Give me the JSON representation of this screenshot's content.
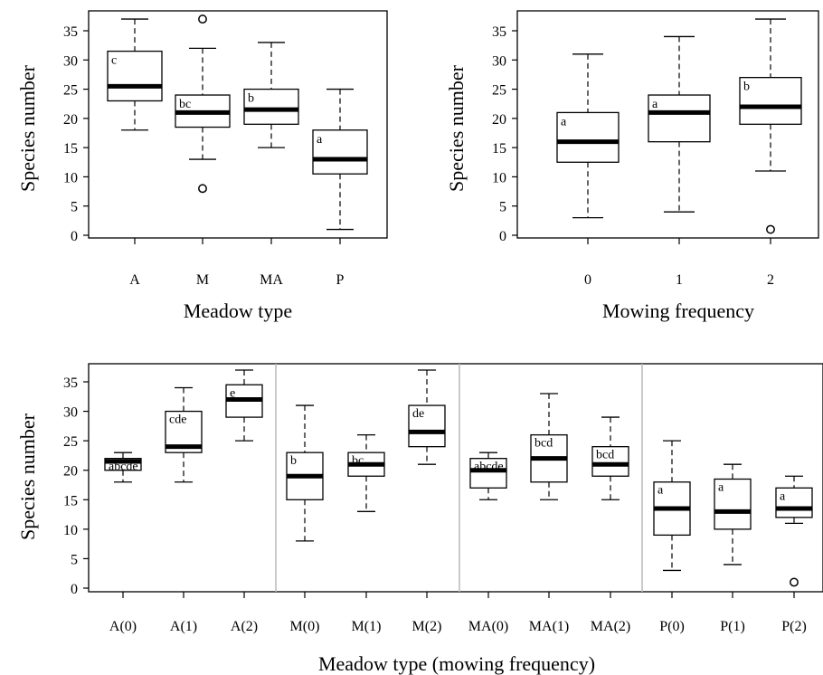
{
  "chart_data": [
    {
      "type": "boxplot",
      "id": "top-left",
      "xlabel": "Meadow type",
      "ylabel": "Species number",
      "ylim": [
        0,
        35
      ],
      "yticks": [
        0,
        5,
        10,
        15,
        20,
        25,
        30,
        35
      ],
      "boxes": [
        {
          "label": "A",
          "whisker_low": 18,
          "q1": 23,
          "median": 25.5,
          "q3": 31.5,
          "whisker_high": 37,
          "outliers": [],
          "letter": "c"
        },
        {
          "label": "M",
          "whisker_low": 13,
          "q1": 18.5,
          "median": 21,
          "q3": 24,
          "whisker_high": 32,
          "outliers": [
            37,
            8
          ],
          "letter": "bc"
        },
        {
          "label": "MA",
          "whisker_low": 15,
          "q1": 19,
          "median": 21.5,
          "q3": 25,
          "whisker_high": 33,
          "outliers": [],
          "letter": "b"
        },
        {
          "label": "P",
          "whisker_low": 1,
          "q1": 10.5,
          "median": 13,
          "q3": 18,
          "whisker_high": 25,
          "outliers": [],
          "letter": "a"
        }
      ]
    },
    {
      "type": "boxplot",
      "id": "top-right",
      "xlabel": "Mowing frequency",
      "ylabel": "Species number",
      "ylim": [
        0,
        35
      ],
      "yticks": [
        0,
        5,
        10,
        15,
        20,
        25,
        30,
        35
      ],
      "boxes": [
        {
          "label": "0",
          "whisker_low": 3,
          "q1": 12.5,
          "median": 16,
          "q3": 21,
          "whisker_high": 31,
          "outliers": [],
          "letter": "a"
        },
        {
          "label": "1",
          "whisker_low": 4,
          "q1": 16,
          "median": 21,
          "q3": 24,
          "whisker_high": 34,
          "outliers": [],
          "letter": "a"
        },
        {
          "label": "2",
          "whisker_low": 11,
          "q1": 19,
          "median": 22,
          "q3": 27,
          "whisker_high": 37,
          "outliers": [
            1
          ],
          "letter": "b"
        }
      ]
    },
    {
      "type": "boxplot",
      "id": "bottom",
      "xlabel": "Meadow type (mowing frequency)",
      "ylabel": "Species number",
      "ylim": [
        0,
        35
      ],
      "yticks": [
        0,
        5,
        10,
        15,
        20,
        25,
        30,
        35
      ],
      "group_dividers_after": [
        3,
        6,
        9
      ],
      "boxes": [
        {
          "label": "A(0)",
          "whisker_low": 18,
          "q1": 20,
          "median": 21.5,
          "q3": 22,
          "whisker_high": 23,
          "outliers": [],
          "letter": "abcde"
        },
        {
          "label": "A(1)",
          "whisker_low": 18,
          "q1": 23,
          "median": 24,
          "q3": 30,
          "whisker_high": 34,
          "outliers": [],
          "letter": "cde"
        },
        {
          "label": "A(2)",
          "whisker_low": 25,
          "q1": 29,
          "median": 32,
          "q3": 34.5,
          "whisker_high": 37,
          "outliers": [],
          "letter": "e"
        },
        {
          "label": "M(0)",
          "whisker_low": 8,
          "q1": 15,
          "median": 19,
          "q3": 23,
          "whisker_high": 31,
          "outliers": [],
          "letter": "b"
        },
        {
          "label": "M(1)",
          "whisker_low": 13,
          "q1": 19,
          "median": 21,
          "q3": 23,
          "whisker_high": 26,
          "outliers": [],
          "letter": "bc"
        },
        {
          "label": "M(2)",
          "whisker_low": 21,
          "q1": 24,
          "median": 26.5,
          "q3": 31,
          "whisker_high": 37,
          "outliers": [],
          "letter": "de"
        },
        {
          "label": "MA(0)",
          "whisker_low": 15,
          "q1": 17,
          "median": 20,
          "q3": 22,
          "whisker_high": 23,
          "outliers": [],
          "letter": "abcde"
        },
        {
          "label": "MA(1)",
          "whisker_low": 15,
          "q1": 18,
          "median": 22,
          "q3": 26,
          "whisker_high": 33,
          "outliers": [],
          "letter": "bcd"
        },
        {
          "label": "MA(2)",
          "whisker_low": 15,
          "q1": 19,
          "median": 21,
          "q3": 24,
          "whisker_high": 29,
          "outliers": [],
          "letter": "bcd"
        },
        {
          "label": "P(0)",
          "whisker_low": 3,
          "q1": 9,
          "median": 13.5,
          "q3": 18,
          "whisker_high": 25,
          "outliers": [],
          "letter": "a"
        },
        {
          "label": "P(1)",
          "whisker_low": 4,
          "q1": 10,
          "median": 13,
          "q3": 18.5,
          "whisker_high": 21,
          "outliers": [],
          "letter": "a"
        },
        {
          "label": "P(2)",
          "whisker_low": 11,
          "q1": 12,
          "median": 13.5,
          "q3": 17,
          "whisker_high": 19,
          "outliers": [
            1
          ],
          "letter": "a"
        }
      ]
    }
  ]
}
